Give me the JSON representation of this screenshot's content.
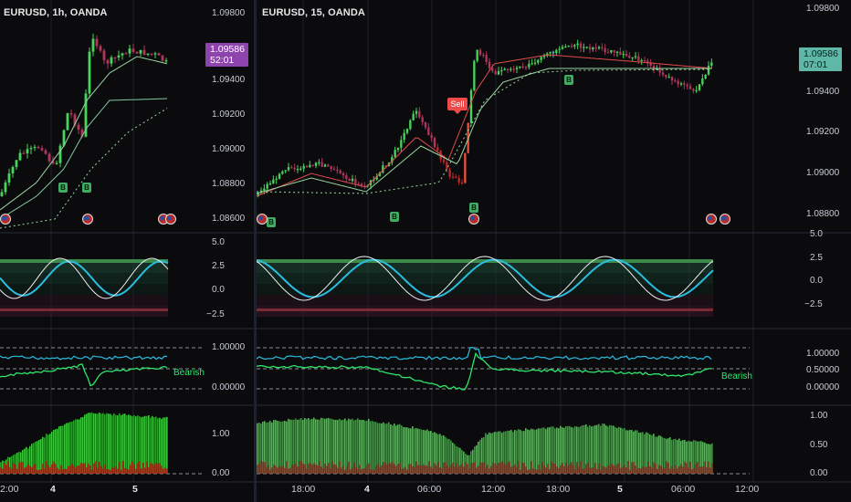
{
  "colors": {
    "bg": "#0b0b0e",
    "grid": "#1e222d",
    "up": "#48d45c",
    "down": "#b0365c",
    "red": "#e23a2a",
    "cyan": "#2bbde0",
    "green": "#2ee66b",
    "white": "#f0f0f0",
    "purple": "#8e44ad",
    "teal": "#5fb8a7"
  },
  "chartA": {
    "title": "EURUSD, 1h, OANDA",
    "price": "1.09586",
    "countdown": "52:01",
    "price_ticks": [
      "1.09800",
      "1.09400",
      "1.09200",
      "1.09000",
      "1.08800",
      "1.08600"
    ],
    "osc_ticks": [
      "5.0",
      "2.5",
      "0.0",
      "−2.5"
    ],
    "ratio_ticks": [
      "1.00000",
      "0.00000"
    ],
    "vol_ticks": [
      "1.00",
      "0.00"
    ],
    "time_labels": [
      {
        "text": "2:00",
        "bold": false
      },
      {
        "text": "4",
        "bold": true
      },
      {
        "text": "5",
        "bold": true
      }
    ],
    "bearish": "Bearish",
    "b_labels": [
      "B",
      "B"
    ],
    "icons": [
      "flag-icon",
      "flag-icon",
      "flag-icon"
    ]
  },
  "chartB": {
    "title": "EURUSD, 15, OANDA",
    "price": "1.09586",
    "countdown": "07:01",
    "price_ticks": [
      "1.09800",
      "1.09400",
      "1.09200",
      "1.09000",
      "1.08800"
    ],
    "osc_ticks": [
      "5.0",
      "2.5",
      "0.0",
      "−2.5"
    ],
    "ratio_ticks": [
      "1.00000",
      "0.50000",
      "0.00000"
    ],
    "vol_ticks": [
      "1.00",
      "0.50",
      "0.00"
    ],
    "time_labels": [
      {
        "text": "18:00",
        "bold": false
      },
      {
        "text": "4",
        "bold": true
      },
      {
        "text": "06:00",
        "bold": false
      },
      {
        "text": "12:00",
        "bold": false
      },
      {
        "text": "18:00",
        "bold": false
      },
      {
        "text": "5",
        "bold": true
      },
      {
        "text": "06:00",
        "bold": false
      },
      {
        "text": "12:00",
        "bold": false
      }
    ],
    "sell_label": "Sell",
    "bearish": "Bearish",
    "b_labels": [
      "B",
      "B",
      "B",
      "B"
    ],
    "icons": [
      "flag-icon",
      "flag-icon",
      "flag-icon",
      "flag-icon"
    ]
  }
}
